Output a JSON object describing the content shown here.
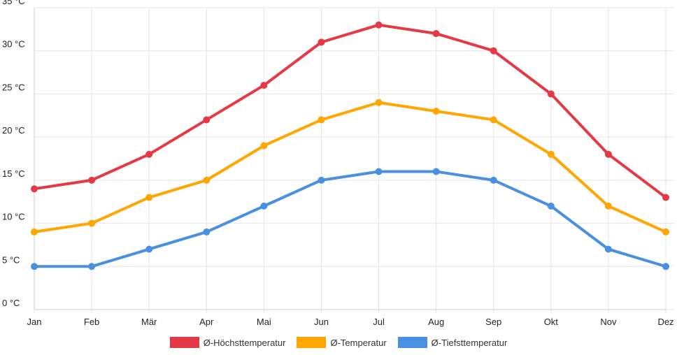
{
  "chart_data": {
    "type": "line",
    "categories": [
      "Jan",
      "Feb",
      "Mär",
      "Apr",
      "Mai",
      "Jun",
      "Jul",
      "Aug",
      "Sep",
      "Okt",
      "Nov",
      "Dez"
    ],
    "ylim": [
      0,
      35
    ],
    "yticks": [
      0,
      5,
      10,
      15,
      20,
      25,
      30,
      35
    ],
    "ytick_suffix": " °C",
    "grid": true,
    "legend_position": "bottom",
    "series": [
      {
        "name": "Ø-Höchsttemperatur",
        "color": "#e63946",
        "values": [
          14,
          15,
          18,
          22,
          26,
          31,
          33,
          32,
          30,
          25,
          18,
          13
        ]
      },
      {
        "name": "Ø-Temperatur",
        "color": "#ffa600",
        "values": [
          9,
          10,
          13,
          15,
          19,
          22,
          24,
          23,
          22,
          18,
          12,
          9
        ]
      },
      {
        "name": "Ø-Tiefsttemperatur",
        "color": "#4a90e2",
        "values": [
          5,
          5,
          7,
          9,
          12,
          15,
          16,
          16,
          15,
          12,
          7,
          5
        ]
      }
    ]
  }
}
